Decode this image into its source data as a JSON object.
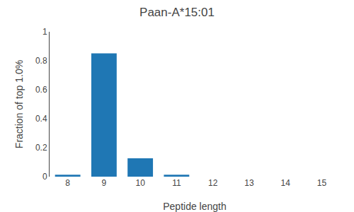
{
  "chart_data": {
    "type": "bar",
    "title": "Paan-A*15:01",
    "xlabel": "Peptide length",
    "ylabel": "Fraction of top 1.0%",
    "categories": [
      8,
      9,
      10,
      11,
      12,
      13,
      14,
      15
    ],
    "values": [
      0.013,
      0.851,
      0.127,
      0.013,
      0.0,
      0.0,
      0.0,
      0.0
    ],
    "color": "#1f77b4",
    "ylim": [
      0.0,
      1.0
    ],
    "yticks": [
      0.0,
      0.2,
      0.4,
      0.6,
      0.8,
      1.0
    ],
    "grid": false
  }
}
